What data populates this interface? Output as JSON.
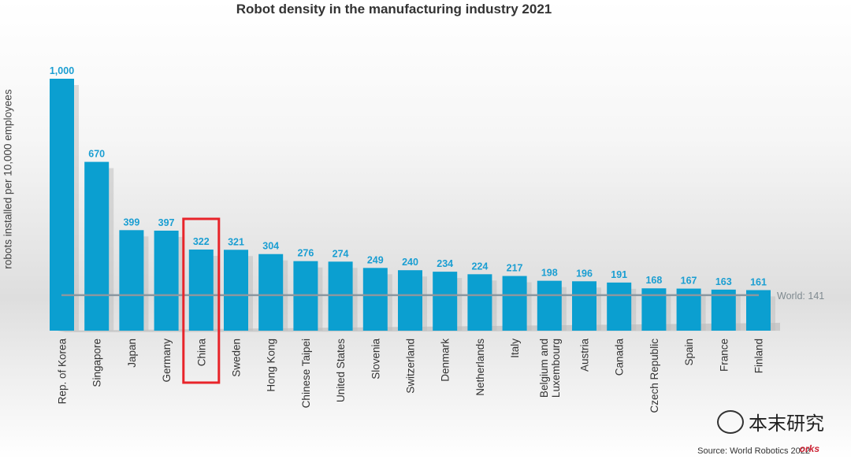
{
  "chart_data": {
    "type": "bar",
    "title": "Robot density in the manufacturing industry 2021",
    "ylabel": "robots installed per 10,000 employees",
    "xlabel": "",
    "ylim": [
      0,
      1000
    ],
    "categories": [
      "Rep. of Korea",
      "Singapore",
      "Japan",
      "Germany",
      "China",
      "Sweden",
      "Hong Kong",
      "Chinese Taipei",
      "United States",
      "Slovenia",
      "Switzerland",
      "Denmark",
      "Netherlands",
      "Italy",
      "Belgium and Luxembourg",
      "Austria",
      "Canada",
      "Czech Republic",
      "Spain",
      "France",
      "Finland"
    ],
    "values": [
      1000,
      670,
      399,
      397,
      322,
      321,
      304,
      276,
      274,
      249,
      240,
      234,
      224,
      217,
      198,
      196,
      191,
      168,
      167,
      163,
      161
    ],
    "value_labels": [
      "1,000",
      "670",
      "399",
      "397",
      "322",
      "321",
      "304",
      "276",
      "274",
      "249",
      "240",
      "234",
      "224",
      "217",
      "198",
      "196",
      "191",
      "168",
      "167",
      "163",
      "161"
    ],
    "reference_line": {
      "value": 141,
      "label": "World: 141"
    },
    "highlighted_category": "China",
    "bar_color": "#0b9fd0",
    "label_color": "#1a9ed2",
    "highlight_color": "#e8242a",
    "grid": false,
    "legend": "none"
  },
  "source": "Source: World Robotics 2022",
  "watermark": "本末研究",
  "logo": "orks"
}
